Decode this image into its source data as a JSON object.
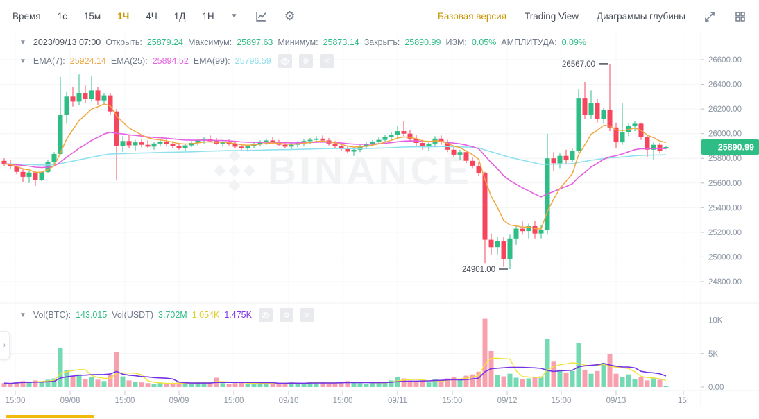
{
  "toolbar": {
    "time_label": "Время",
    "intervals": [
      {
        "label": "1с"
      },
      {
        "label": "15м"
      },
      {
        "label": "1Ч",
        "active": true
      },
      {
        "label": "4Ч"
      },
      {
        "label": "1Д"
      },
      {
        "label": "1Н"
      }
    ],
    "views": [
      {
        "label": "Базовая версия",
        "active": true
      },
      {
        "label": "Trading View"
      },
      {
        "label": "Диаграммы глубины"
      }
    ],
    "icons": [
      "chevron-down-icon",
      "kline-chart-icon",
      "gear-icon",
      "expand-icon",
      "grid-layout-icon"
    ]
  },
  "ohlc": {
    "date": "2023/09/13 07:00",
    "items": [
      {
        "label": "Открыть:",
        "value": "25879.24"
      },
      {
        "label": "Максимум:",
        "value": "25897.63"
      },
      {
        "label": "Минимум:",
        "value": "25873.14"
      },
      {
        "label": "Закрыть:",
        "value": "25890.99"
      },
      {
        "label": "ИЗМ:",
        "value": "0.05%"
      },
      {
        "label": "АМПЛИТУДА:",
        "value": "0.09%"
      }
    ]
  },
  "ema_legend": {
    "items": [
      {
        "label": "EMA(7):",
        "value": "25924.14",
        "color": "#F0A73F"
      },
      {
        "label": "EMA(25):",
        "value": "25894.52",
        "color": "#E55FE0"
      },
      {
        "label": "EMA(99):",
        "value": "25796.59",
        "color": "#8FE0EE"
      }
    ],
    "icons": [
      "eye-icon",
      "gear-icon",
      "close-icon"
    ]
  },
  "volume_legend": {
    "vol_btc_label": "Vol(BTC):",
    "vol_btc_value": "143.015",
    "vol_usdt_label": "Vol(USDT)",
    "vol_usdt_value": "3.702M",
    "ma5_value": "1.054K",
    "ma10_value": "1.475K",
    "icons": [
      "eye-icon",
      "gear-icon",
      "close-icon"
    ]
  },
  "watermark": "BINANCE",
  "colors": {
    "up": "#2EBD85",
    "down": "#F6465D",
    "vol_up": "#74DAB4",
    "vol_down": "#F8A1AE",
    "ema7": "#F0A73F",
    "ema25": "#E55FE0",
    "ema99": "#8FE0EE",
    "vol_ma5": "#F2E33C",
    "vol_ma10": "#7433E6",
    "accent": "#F0B90B",
    "active_text": "#C99400",
    "axis_text": "#8C96A3",
    "grid": "#F3F4F6",
    "badge_bg": "#2EBD85"
  },
  "chart_data": {
    "type": "candlestick+volume",
    "interval": "1Ч",
    "price_axis_ticks": [
      26600,
      26400,
      26200,
      26000,
      25800,
      25600,
      25400,
      25200,
      25000,
      24800
    ],
    "volume_axis_ticks": [
      {
        "v": 10,
        "label": "10K"
      },
      {
        "v": 5,
        "label": "5K"
      },
      {
        "v": 0,
        "label": "0.00"
      }
    ],
    "x_axis": [
      {
        "pos": 22,
        "label": "15:00"
      },
      {
        "pos": 101,
        "label": "09/08"
      },
      {
        "pos": 180,
        "label": "15:00"
      },
      {
        "pos": 258,
        "label": "09/09"
      },
      {
        "pos": 337,
        "label": "15:00"
      },
      {
        "pos": 416,
        "label": "09/10"
      },
      {
        "pos": 494,
        "label": "15:00"
      },
      {
        "pos": 573,
        "label": "09/11"
      },
      {
        "pos": 652,
        "label": "15:00"
      },
      {
        "pos": 731,
        "label": "09/12"
      },
      {
        "pos": 809,
        "label": "15:00"
      },
      {
        "pos": 888,
        "label": "09/13"
      },
      {
        "pos": 985,
        "label": "15:"
      }
    ],
    "annotations": [
      {
        "text": "26567.00",
        "candle": 97,
        "price": 26567,
        "side": "high"
      },
      {
        "text": "24901.00",
        "candle": 81,
        "price": 24901,
        "side": "low"
      }
    ],
    "price_badge": {
      "label": "25890.99",
      "price": 25890.99
    },
    "overlays": [
      "EMA(7)",
      "EMA(25)",
      "EMA(99)"
    ],
    "volume_overlays": [
      "MA(5)",
      "MA(10)"
    ],
    "candles_format": [
      "open",
      "high",
      "low",
      "close",
      "volumeK"
    ],
    "candles": [
      [
        25780,
        25800,
        25740,
        25755,
        0.6
      ],
      [
        25755,
        25790,
        25715,
        25735,
        0.5
      ],
      [
        25735,
        25750,
        25670,
        25690,
        0.8
      ],
      [
        25690,
        25720,
        25610,
        25650,
        0.9
      ],
      [
        25650,
        25700,
        25600,
        25685,
        0.7
      ],
      [
        25685,
        25695,
        25575,
        25625,
        1.0
      ],
      [
        25625,
        25700,
        25615,
        25690,
        0.8
      ],
      [
        25690,
        25785,
        25680,
        25770,
        1.1
      ],
      [
        25770,
        25850,
        25755,
        25835,
        1.3
      ],
      [
        25835,
        26460,
        25830,
        26150,
        5.8
      ],
      [
        26150,
        26340,
        26080,
        26300,
        2.5
      ],
      [
        26300,
        26380,
        26220,
        26260,
        1.6
      ],
      [
        26260,
        26480,
        26230,
        26330,
        1.9
      ],
      [
        26330,
        26390,
        26250,
        26280,
        1.2
      ],
      [
        26280,
        26470,
        26260,
        26350,
        1.5
      ],
      [
        26350,
        26380,
        26230,
        26270,
        1.1
      ],
      [
        26270,
        26330,
        26240,
        26310,
        0.9
      ],
      [
        26310,
        26330,
        26150,
        26180,
        1.8
      ],
      [
        26180,
        26200,
        25620,
        25900,
        5.2
      ],
      [
        25900,
        25980,
        25850,
        25940,
        1.6
      ],
      [
        25940,
        25990,
        25880,
        25905,
        1.0
      ],
      [
        25905,
        25950,
        25860,
        25930,
        0.8
      ],
      [
        25930,
        25960,
        25890,
        25910,
        0.7
      ],
      [
        25910,
        25945,
        25880,
        25895,
        0.6
      ],
      [
        25895,
        25930,
        25870,
        25920,
        0.5
      ],
      [
        25920,
        25950,
        25895,
        25935,
        0.6
      ],
      [
        25935,
        25955,
        25900,
        25915,
        0.5
      ],
      [
        25915,
        25940,
        25885,
        25900,
        0.6
      ],
      [
        25900,
        25925,
        25870,
        25885,
        0.7
      ],
      [
        25885,
        25915,
        25860,
        25905,
        0.5
      ],
      [
        25905,
        25940,
        25890,
        25925,
        0.6
      ],
      [
        25925,
        25960,
        25905,
        25945,
        0.8
      ],
      [
        25945,
        25975,
        25920,
        25955,
        0.7
      ],
      [
        25955,
        25985,
        25930,
        25940,
        0.6
      ],
      [
        25940,
        25965,
        25910,
        25920,
        1.4
      ],
      [
        25920,
        25950,
        25895,
        25935,
        0.6
      ],
      [
        25935,
        25955,
        25905,
        25915,
        0.5
      ],
      [
        25915,
        25935,
        25880,
        25895,
        0.6
      ],
      [
        25895,
        25920,
        25865,
        25880,
        0.7
      ],
      [
        25880,
        25910,
        25855,
        25900,
        0.5
      ],
      [
        25900,
        25930,
        25880,
        25915,
        0.6
      ],
      [
        25915,
        25945,
        25895,
        25930,
        0.5
      ],
      [
        25930,
        25960,
        25910,
        25945,
        0.7
      ],
      [
        25945,
        25970,
        25920,
        25935,
        0.6
      ],
      [
        25935,
        25950,
        25900,
        25910,
        0.5
      ],
      [
        25910,
        25935,
        25885,
        25895,
        0.6
      ],
      [
        25895,
        25925,
        25870,
        25910,
        0.7
      ],
      [
        25910,
        25940,
        25890,
        25925,
        0.5
      ],
      [
        25925,
        25955,
        25900,
        25940,
        0.6
      ],
      [
        25940,
        25965,
        25915,
        25950,
        0.8
      ],
      [
        25950,
        25980,
        25925,
        25960,
        0.7
      ],
      [
        25960,
        25985,
        25930,
        25945,
        0.6
      ],
      [
        25945,
        25965,
        25905,
        25920,
        0.5
      ],
      [
        25920,
        25940,
        25885,
        25900,
        0.7
      ],
      [
        25900,
        25925,
        25860,
        25875,
        0.8
      ],
      [
        25875,
        25905,
        25840,
        25855,
        0.9
      ],
      [
        25855,
        25890,
        25820,
        25870,
        0.7
      ],
      [
        25870,
        25910,
        25850,
        25895,
        0.6
      ],
      [
        25895,
        25930,
        25875,
        25915,
        0.5
      ],
      [
        25915,
        25950,
        25895,
        25935,
        0.6
      ],
      [
        25935,
        25970,
        25915,
        25950,
        0.7
      ],
      [
        25950,
        25990,
        25930,
        25970,
        0.8
      ],
      [
        25970,
        26010,
        25945,
        25990,
        1.0
      ],
      [
        25990,
        26060,
        25960,
        26020,
        1.5
      ],
      [
        26020,
        26100,
        25980,
        26000,
        1.3
      ],
      [
        26000,
        26030,
        25940,
        25960,
        1.0
      ],
      [
        25960,
        25990,
        25900,
        25925,
        0.9
      ],
      [
        25925,
        25950,
        25870,
        25890,
        0.8
      ],
      [
        25890,
        25935,
        25860,
        25920,
        0.7
      ],
      [
        25920,
        25980,
        25900,
        25960,
        1.2
      ],
      [
        25960,
        25985,
        25910,
        25930,
        1.0
      ],
      [
        25930,
        25950,
        25850,
        25870,
        1.3
      ],
      [
        25870,
        25900,
        25810,
        25830,
        1.5
      ],
      [
        25830,
        25870,
        25790,
        25850,
        1.1
      ],
      [
        25850,
        25865,
        25760,
        25780,
        1.7
      ],
      [
        25780,
        25810,
        25720,
        25740,
        1.9
      ],
      [
        25740,
        25770,
        25660,
        25680,
        2.3
      ],
      [
        25680,
        25690,
        24950,
        25140,
        10.2
      ],
      [
        25140,
        25190,
        25020,
        25080,
        5.4
      ],
      [
        25080,
        25160,
        25020,
        25130,
        1.8
      ],
      [
        25130,
        25160,
        24920,
        24980,
        1.6
      ],
      [
        24980,
        25180,
        24901,
        25150,
        2.0
      ],
      [
        25150,
        25260,
        25100,
        25230,
        1.4
      ],
      [
        25230,
        25290,
        25180,
        25210,
        1.2
      ],
      [
        25210,
        25270,
        25150,
        25250,
        1.3
      ],
      [
        25250,
        25290,
        25150,
        25190,
        1.5
      ],
      [
        25190,
        25260,
        25150,
        25220,
        1.6
      ],
      [
        25220,
        26000,
        25180,
        25800,
        7.2
      ],
      [
        25800,
        25850,
        25700,
        25760,
        3.8
      ],
      [
        25760,
        25840,
        25720,
        25820,
        2.6
      ],
      [
        25820,
        25870,
        25755,
        25790,
        2.2
      ],
      [
        25790,
        25880,
        25770,
        25860,
        2.4
      ],
      [
        25860,
        26360,
        25840,
        26290,
        6.6
      ],
      [
        26290,
        26420,
        26120,
        26150,
        2.6
      ],
      [
        26150,
        26350,
        26120,
        26250,
        2.0
      ],
      [
        26250,
        26280,
        26090,
        26120,
        2.4
      ],
      [
        26120,
        26210,
        26080,
        26190,
        3.6
      ],
      [
        26190,
        26567,
        26020,
        26050,
        4.9
      ],
      [
        26050,
        26090,
        25880,
        25930,
        2.0
      ],
      [
        25930,
        26250,
        25910,
        26010,
        1.5
      ],
      [
        26010,
        26080,
        25980,
        26060,
        1.9
      ],
      [
        26060,
        26100,
        26020,
        26080,
        1.2
      ],
      [
        26080,
        26090,
        25950,
        25970,
        1.5
      ],
      [
        25970,
        25990,
        25810,
        25870,
        1.0
      ],
      [
        25870,
        25930,
        25790,
        25910,
        1.3
      ],
      [
        25910,
        25925,
        25840,
        25860,
        1.1
      ],
      [
        25879.24,
        25897.63,
        25873.14,
        25890.99,
        0.143
      ]
    ]
  }
}
